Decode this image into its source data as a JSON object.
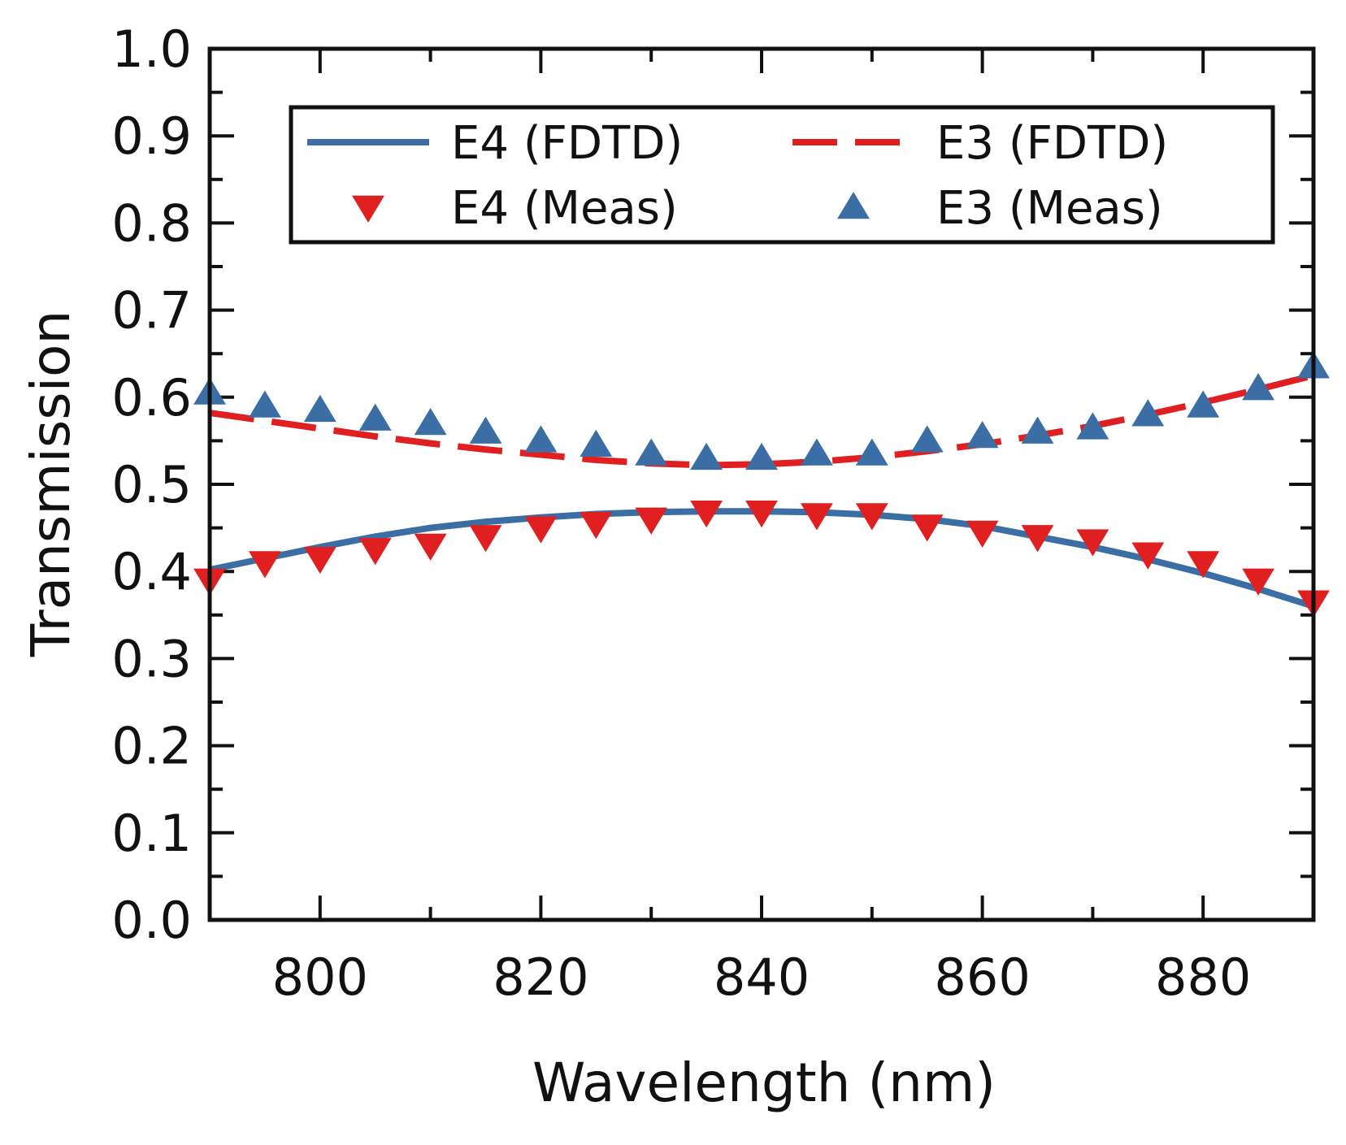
{
  "chart_data": {
    "type": "line",
    "title": "",
    "xlabel": "Wavelength (nm)",
    "ylabel": "Transmission",
    "xlim": [
      790,
      890
    ],
    "ylim": [
      0.0,
      1.0
    ],
    "grid": false,
    "legend_position": "top",
    "x_ticks": [
      800,
      820,
      840,
      860,
      880
    ],
    "x_tick_labels": [
      "800",
      "820",
      "840",
      "860",
      "880"
    ],
    "y_ticks": [
      0.0,
      0.1,
      0.2,
      0.3,
      0.4,
      0.5,
      0.6,
      0.7,
      0.8,
      0.9,
      1.0
    ],
    "y_tick_labels": [
      "0.0",
      "0.1",
      "0.2",
      "0.3",
      "0.4",
      "0.5",
      "0.6",
      "0.7",
      "0.8",
      "0.9",
      "1.0"
    ],
    "series": [
      {
        "name": "E4 (FDTD)",
        "style": "line-solid",
        "color": "#3a6ea5",
        "x": [
          790,
          795,
          800,
          805,
          810,
          815,
          820,
          825,
          830,
          835,
          840,
          845,
          850,
          855,
          860,
          865,
          870,
          875,
          880,
          885,
          890
        ],
        "y": [
          0.402,
          0.415,
          0.428,
          0.44,
          0.45,
          0.457,
          0.462,
          0.466,
          0.468,
          0.469,
          0.469,
          0.468,
          0.465,
          0.46,
          0.452,
          0.44,
          0.428,
          0.414,
          0.398,
          0.38,
          0.36
        ]
      },
      {
        "name": "E3 (FDTD)",
        "style": "line-dashed",
        "color": "#e02020",
        "x": [
          790,
          795,
          800,
          805,
          810,
          815,
          820,
          825,
          830,
          835,
          840,
          845,
          850,
          855,
          860,
          865,
          870,
          875,
          880,
          885,
          890
        ],
        "y": [
          0.582,
          0.573,
          0.564,
          0.555,
          0.547,
          0.54,
          0.534,
          0.528,
          0.524,
          0.522,
          0.523,
          0.526,
          0.531,
          0.538,
          0.546,
          0.556,
          0.567,
          0.58,
          0.594,
          0.609,
          0.625
        ]
      },
      {
        "name": "E4 (Meas)",
        "style": "marker-triangle-down",
        "color": "#e02020",
        "x": [
          790,
          795,
          800,
          805,
          810,
          815,
          820,
          825,
          830,
          835,
          840,
          845,
          850,
          855,
          860,
          865,
          870,
          875,
          880,
          885,
          890
        ],
        "y": [
          0.39,
          0.41,
          0.415,
          0.425,
          0.43,
          0.44,
          0.45,
          0.455,
          0.46,
          0.468,
          0.468,
          0.465,
          0.465,
          0.452,
          0.445,
          0.44,
          0.435,
          0.42,
          0.41,
          0.39,
          0.365
        ]
      },
      {
        "name": "E3 (Meas)",
        "style": "marker-triangle-up",
        "color": "#3a6ea5",
        "x": [
          790,
          795,
          800,
          805,
          810,
          815,
          820,
          825,
          830,
          835,
          840,
          845,
          850,
          855,
          860,
          865,
          870,
          875,
          880,
          885,
          890
        ],
        "y": [
          0.605,
          0.59,
          0.585,
          0.575,
          0.57,
          0.56,
          0.55,
          0.545,
          0.535,
          0.53,
          0.53,
          0.535,
          0.535,
          0.55,
          0.555,
          0.56,
          0.565,
          0.58,
          0.59,
          0.61,
          0.635
        ]
      }
    ]
  }
}
